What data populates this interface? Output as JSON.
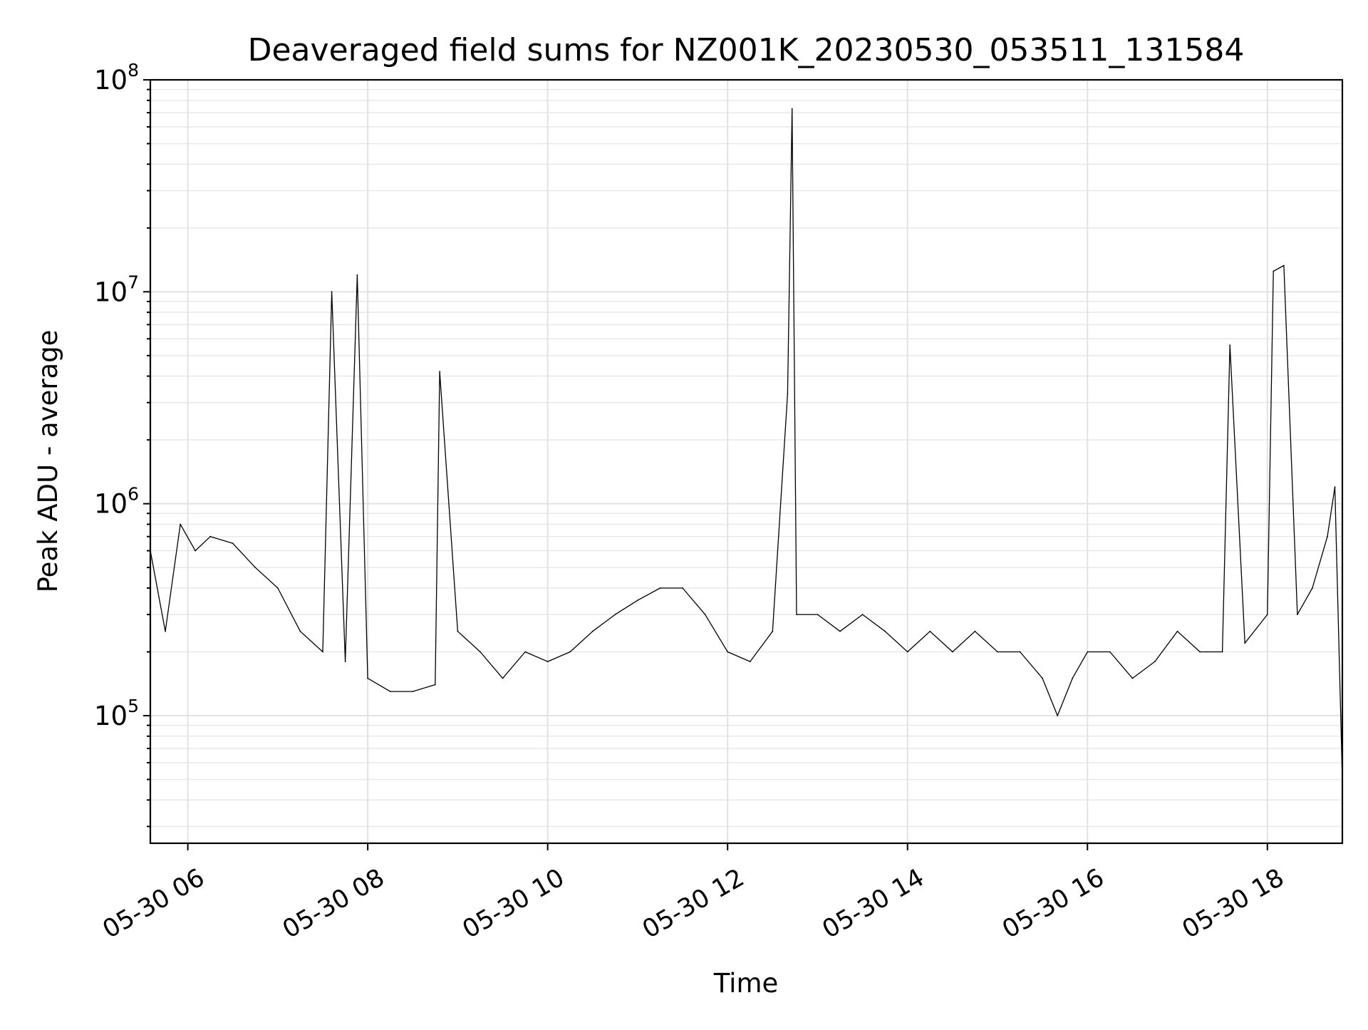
{
  "chart_data": {
    "type": "line",
    "title": "Deaveraged field sums for NZ001K_20230530_053511_131584",
    "xlabel": "Time",
    "ylabel": "Peak ADU - average",
    "yscale": "log",
    "ylim": [
      25000,
      100000000
    ],
    "xlim": [
      "2023-05-30 05:35",
      "2023-05-30 18:50"
    ],
    "grid": true,
    "grid_minor": true,
    "x_ticks": [
      {
        "value": "2023-05-30 06:00",
        "label": "05-30 06"
      },
      {
        "value": "2023-05-30 08:00",
        "label": "05-30 08"
      },
      {
        "value": "2023-05-30 10:00",
        "label": "05-30 10"
      },
      {
        "value": "2023-05-30 12:00",
        "label": "05-30 12"
      },
      {
        "value": "2023-05-30 14:00",
        "label": "05-30 14"
      },
      {
        "value": "2023-05-30 16:00",
        "label": "05-30 16"
      },
      {
        "value": "2023-05-30 18:00",
        "label": "05-30 18"
      }
    ],
    "y_ticks": [
      {
        "value": 100000,
        "base": "10",
        "exp": "5"
      },
      {
        "value": 1000000,
        "base": "10",
        "exp": "6"
      },
      {
        "value": 10000000,
        "base": "10",
        "exp": "7"
      },
      {
        "value": 100000000,
        "base": "10",
        "exp": "8"
      }
    ],
    "series": [
      {
        "color": "#000000",
        "x": [
          "2023-05-30 05:35",
          "2023-05-30 05:45",
          "2023-05-30 05:55",
          "2023-05-30 06:05",
          "2023-05-30 06:15",
          "2023-05-30 06:30",
          "2023-05-30 06:45",
          "2023-05-30 07:00",
          "2023-05-30 07:15",
          "2023-05-30 07:30",
          "2023-05-30 07:36",
          "2023-05-30 07:45",
          "2023-05-30 07:53",
          "2023-05-30 08:00",
          "2023-05-30 08:15",
          "2023-05-30 08:30",
          "2023-05-30 08:45",
          "2023-05-30 08:48",
          "2023-05-30 09:00",
          "2023-05-30 09:15",
          "2023-05-30 09:30",
          "2023-05-30 09:45",
          "2023-05-30 10:00",
          "2023-05-30 10:15",
          "2023-05-30 10:30",
          "2023-05-30 10:45",
          "2023-05-30 11:00",
          "2023-05-30 11:15",
          "2023-05-30 11:30",
          "2023-05-30 11:45",
          "2023-05-30 12:00",
          "2023-05-30 12:15",
          "2023-05-30 12:30",
          "2023-05-30 12:40",
          "2023-05-30 12:43",
          "2023-05-30 12:46",
          "2023-05-30 13:00",
          "2023-05-30 13:15",
          "2023-05-30 13:30",
          "2023-05-30 13:45",
          "2023-05-30 14:00",
          "2023-05-30 14:15",
          "2023-05-30 14:30",
          "2023-05-30 14:45",
          "2023-05-30 15:00",
          "2023-05-30 15:15",
          "2023-05-30 15:30",
          "2023-05-30 15:40",
          "2023-05-30 15:50",
          "2023-05-30 16:00",
          "2023-05-30 16:15",
          "2023-05-30 16:30",
          "2023-05-30 16:45",
          "2023-05-30 17:00",
          "2023-05-30 17:15",
          "2023-05-30 17:30",
          "2023-05-30 17:35",
          "2023-05-30 17:45",
          "2023-05-30 18:00",
          "2023-05-30 18:04",
          "2023-05-30 18:11",
          "2023-05-30 18:20",
          "2023-05-30 18:30",
          "2023-05-30 18:40",
          "2023-05-30 18:45",
          "2023-05-30 18:50"
        ],
        "y": [
          600000,
          250000,
          800000,
          600000,
          700000,
          650000,
          500000,
          400000,
          250000,
          200000,
          10000000,
          180000,
          12000000,
          150000,
          130000,
          130000,
          140000,
          4200000,
          250000,
          200000,
          150000,
          200000,
          180000,
          200000,
          250000,
          300000,
          350000,
          400000,
          400000,
          300000,
          200000,
          180000,
          250000,
          3300000,
          73000000,
          300000,
          300000,
          250000,
          300000,
          250000,
          200000,
          250000,
          200000,
          250000,
          200000,
          200000,
          150000,
          100000,
          150000,
          200000,
          200000,
          150000,
          180000,
          250000,
          200000,
          200000,
          5600000,
          220000,
          300000,
          12500000,
          13300000,
          300000,
          400000,
          700000,
          1200000,
          50000
        ]
      }
    ]
  }
}
